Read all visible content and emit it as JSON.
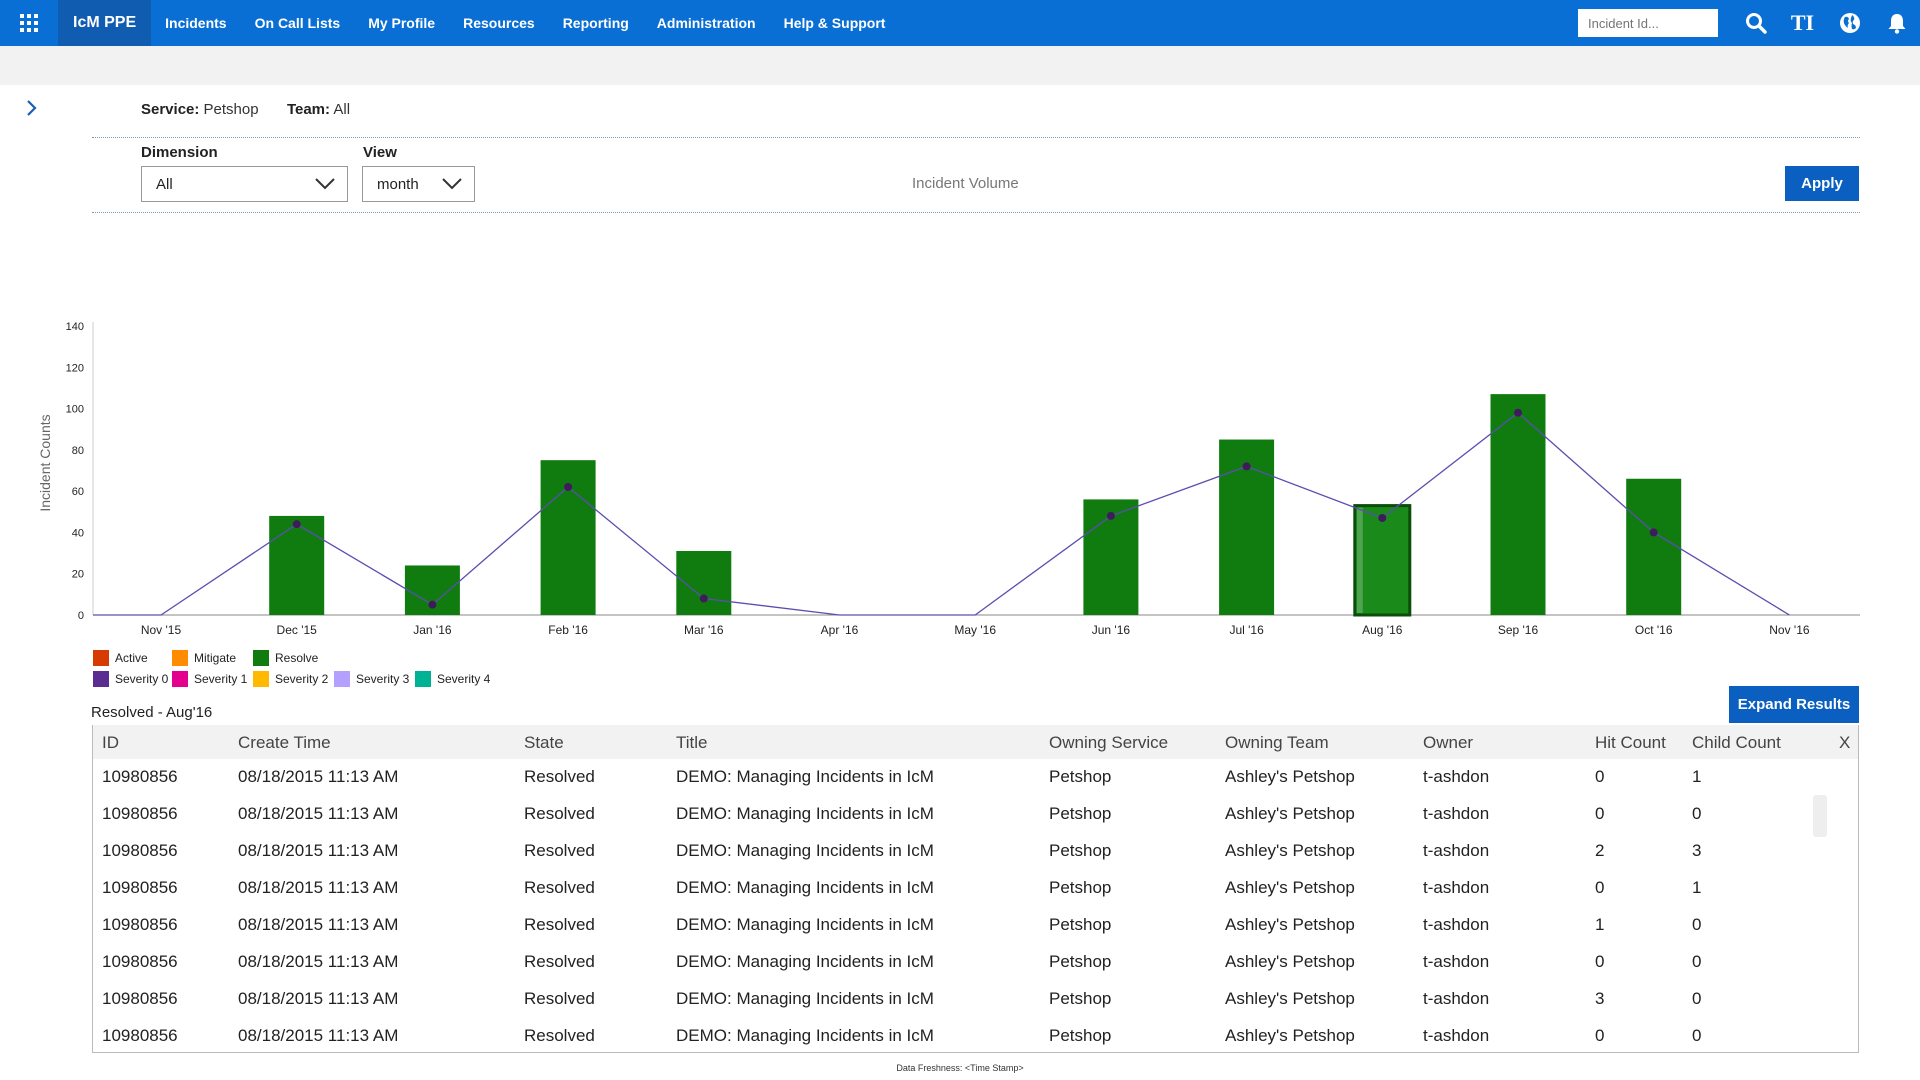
{
  "topbar": {
    "brand": "IcM PPE",
    "nav": [
      "Incidents",
      "On Call Lists",
      "My Profile",
      "Resources",
      "Reporting",
      "Administration",
      "Help & Support"
    ],
    "search_placeholder": "Incident Id...",
    "icons": [
      "search-icon",
      "text-size-icon",
      "globe-icon",
      "bell-icon"
    ],
    "text_size_glyph": "TI"
  },
  "filters": {
    "service_label": "Service:",
    "service_value": "Petshop",
    "team_label": "Team:",
    "team_value": "All",
    "dimension_label": "Dimension",
    "dimension_value": "All",
    "view_label": "View",
    "view_value": "month",
    "chart_title": "Incident Volume",
    "apply_label": "Apply"
  },
  "legend": [
    {
      "name": "Active",
      "color": "#d83b01"
    },
    {
      "name": "Mitigate",
      "color": "#ff8c00"
    },
    {
      "name": "Resolve",
      "color": "#107c10"
    },
    {
      "name": "Severity 0",
      "color": "#5c2d91"
    },
    {
      "name": "Severity 1",
      "color": "#e3008c"
    },
    {
      "name": "Severity 2",
      "color": "#ffb900"
    },
    {
      "name": "Severity 3",
      "color": "#b4a0ff"
    },
    {
      "name": "Severity 4",
      "color": "#00b294"
    }
  ],
  "chart_data": {
    "type": "bar",
    "ylabel": "Incident Counts",
    "xlabel": "",
    "ylim": [
      0,
      140
    ],
    "yticks": [
      0,
      20,
      40,
      60,
      80,
      100,
      120,
      140
    ],
    "categories": [
      "Nov '15",
      "Dec '15",
      "Jan '16",
      "Feb '16",
      "Mar '16",
      "Apr '16",
      "May '16",
      "Jun '16",
      "Jul '16",
      "Aug '16",
      "Sep '16",
      "Oct '16",
      "Nov '16"
    ],
    "series": [
      {
        "name": "Resolve",
        "type": "bar",
        "color": "#107c10",
        "values": [
          0,
          48,
          24,
          75,
          31,
          0,
          0,
          56,
          85,
          53,
          107,
          66,
          0
        ]
      },
      {
        "name": "",
        "type": "line",
        "color": "#5c4db1",
        "values": [
          0,
          44,
          5,
          62,
          8,
          0,
          0,
          48,
          72,
          47,
          98,
          40,
          0
        ]
      }
    ],
    "selected_category": "Aug '16",
    "grid": false
  },
  "results": {
    "label": "Resolved - Aug'16",
    "expand_label": "Expand Results",
    "columns": [
      "ID",
      "Create Time",
      "State",
      "Title",
      "Owning Service",
      "Owning Team",
      "Owner",
      "Hit Count",
      "Child Count",
      "X"
    ],
    "rows": [
      [
        "10980856",
        "08/18/2015 11:13 AM",
        "Resolved",
        "DEMO: Managing Incidents in IcM",
        "Petshop",
        "Ashley's Petshop",
        "t-ashdon",
        "0",
        "1"
      ],
      [
        "10980856",
        "08/18/2015 11:13 AM",
        "Resolved",
        "DEMO: Managing Incidents in IcM",
        "Petshop",
        "Ashley's Petshop",
        "t-ashdon",
        "0",
        "0"
      ],
      [
        "10980856",
        "08/18/2015 11:13 AM",
        "Resolved",
        "DEMO: Managing Incidents in IcM",
        "Petshop",
        "Ashley's Petshop",
        "t-ashdon",
        "2",
        "3"
      ],
      [
        "10980856",
        "08/18/2015 11:13 AM",
        "Resolved",
        "DEMO: Managing Incidents in IcM",
        "Petshop",
        "Ashley's Petshop",
        "t-ashdon",
        "0",
        "1"
      ],
      [
        "10980856",
        "08/18/2015 11:13 AM",
        "Resolved",
        "DEMO: Managing Incidents in IcM",
        "Petshop",
        "Ashley's Petshop",
        "t-ashdon",
        "1",
        "0"
      ],
      [
        "10980856",
        "08/18/2015 11:13 AM",
        "Resolved",
        "DEMO: Managing Incidents in IcM",
        "Petshop",
        "Ashley's Petshop",
        "t-ashdon",
        "0",
        "0"
      ],
      [
        "10980856",
        "08/18/2015 11:13 AM",
        "Resolved",
        "DEMO: Managing Incidents in IcM",
        "Petshop",
        "Ashley's Petshop",
        "t-ashdon",
        "3",
        "0"
      ],
      [
        "10980856",
        "08/18/2015 11:13 AM",
        "Resolved",
        "DEMO: Managing Incidents in IcM",
        "Petshop",
        "Ashley's Petshop",
        "t-ashdon",
        "0",
        "0"
      ]
    ]
  },
  "footer": "Data Freshness: <Time Stamp>"
}
